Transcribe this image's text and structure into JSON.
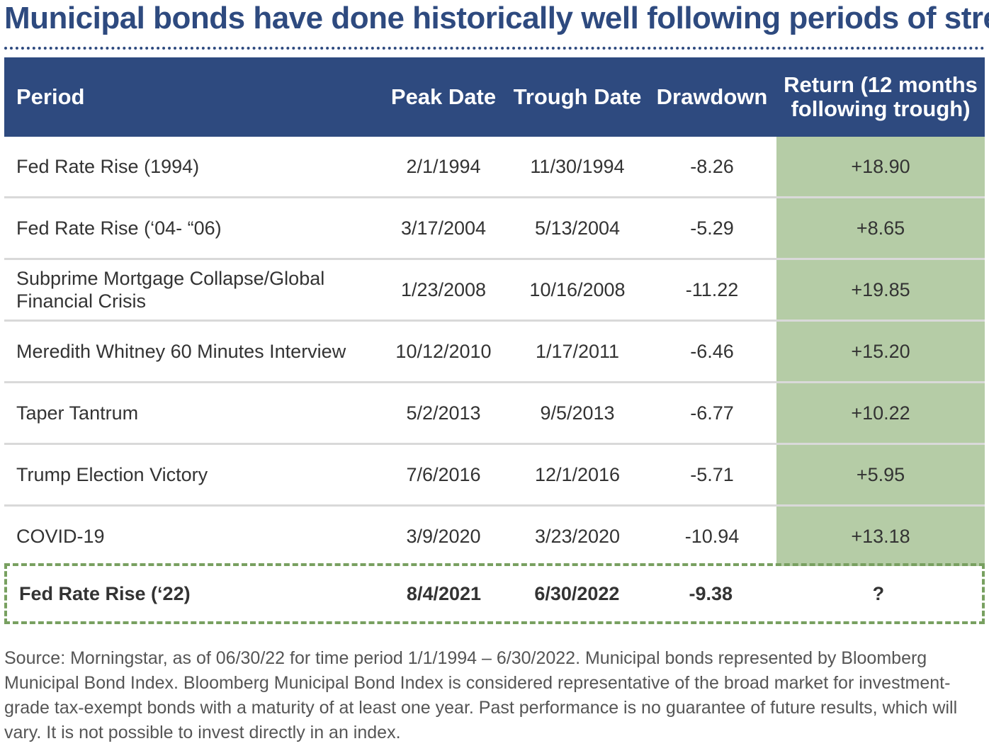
{
  "title": "Municipal bonds have done historically well following periods of stress",
  "chart_data": {
    "type": "table",
    "columns": [
      "Period",
      "Peak Date",
      "Trough Date",
      "Drawdown",
      "Return (12 months following trough)"
    ],
    "rows": [
      {
        "period": "Fed Rate Rise (1994)",
        "peak": "2/1/1994",
        "trough": "11/30/1994",
        "drawdown": "-8.26",
        "return": "+18.90"
      },
      {
        "period": "Fed Rate Rise (‘04- “06)",
        "peak": "3/17/2004",
        "trough": "5/13/2004",
        "drawdown": "-5.29",
        "return": "+8.65"
      },
      {
        "period": "Subprime Mortgage Collapse/Global Financial Crisis",
        "peak": "1/23/2008",
        "trough": "10/16/2008",
        "drawdown": "-11.22",
        "return": "+19.85"
      },
      {
        "period": "Meredith Whitney 60 Minutes Interview",
        "peak": "10/12/2010",
        "trough": "1/17/2011",
        "drawdown": "-6.46",
        "return": "+15.20"
      },
      {
        "period": "Taper Tantrum",
        "peak": "5/2/2013",
        "trough": "9/5/2013",
        "drawdown": "-6.77",
        "return": "+10.22"
      },
      {
        "period": "Trump Election Victory",
        "peak": "7/6/2016",
        "trough": "12/1/2016",
        "drawdown": "-5.71",
        "return": "+5.95"
      },
      {
        "period": "COVID-19",
        "peak": "3/9/2020",
        "trough": "3/23/2020",
        "drawdown": "-10.94",
        "return": "+13.18"
      }
    ],
    "highlight_row": {
      "period": "Fed Rate Rise (‘22)",
      "peak": "8/4/2021",
      "trough": "6/30/2022",
      "drawdown": "-9.38",
      "return": "?"
    }
  },
  "source": "Source: Morningstar, as of 06/30/22 for time period 1/1/1994 – 6/30/2022. Municipal bonds represented by Bloomberg Municipal Bond Index. Bloomberg Municipal Bond Index is considered representative of the broad market for investment-grade tax-exempt bonds with a maturity of at least one year. Past performance is no guarantee of future results, which will vary. It is not possible to invest directly in an index.",
  "colors": {
    "header_bg": "#2e4a7f",
    "return_bg": "#b5cca6",
    "highlight_border": "#78a060"
  }
}
